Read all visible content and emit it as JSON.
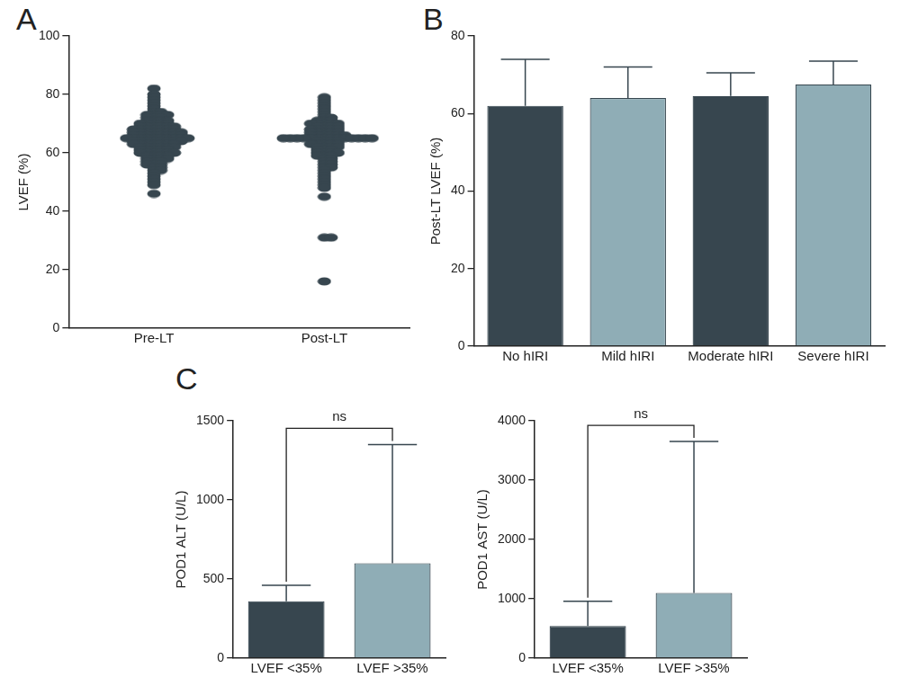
{
  "chart_data": [
    {
      "type": "scatter",
      "title": "A",
      "ylabel": "LVEF (%)",
      "categories": [
        "Pre-LT",
        "Post-LT"
      ],
      "values": [
        [
          82,
          80,
          79,
          78,
          77,
          76,
          75,
          74,
          74,
          73,
          73,
          73,
          73,
          72,
          72,
          72,
          71,
          71,
          71,
          71,
          70,
          70,
          70,
          70,
          70,
          69,
          69,
          69,
          69,
          69,
          69,
          68,
          68,
          68,
          68,
          68,
          68,
          68,
          67,
          67,
          67,
          67,
          67,
          67,
          67,
          67,
          66,
          66,
          66,
          66,
          66,
          66,
          66,
          66,
          65,
          65,
          65,
          65,
          65,
          65,
          65,
          65,
          65,
          65,
          64,
          64,
          64,
          64,
          64,
          64,
          64,
          64,
          63,
          63,
          63,
          63,
          63,
          63,
          63,
          62,
          62,
          62,
          62,
          62,
          62,
          61,
          61,
          61,
          61,
          61,
          60,
          60,
          60,
          60,
          60,
          60,
          59,
          59,
          59,
          59,
          58,
          58,
          58,
          58,
          57,
          57,
          57,
          56,
          56,
          56,
          55,
          55,
          54,
          54,
          53,
          52,
          51,
          50,
          49,
          46
        ],
        [
          79,
          78,
          77,
          76,
          75,
          74,
          73,
          72,
          72,
          71,
          71,
          71,
          70,
          70,
          70,
          70,
          70,
          69,
          69,
          69,
          69,
          68,
          68,
          68,
          68,
          68,
          67,
          67,
          67,
          67,
          67,
          66,
          66,
          66,
          66,
          66,
          66,
          65,
          65,
          65,
          65,
          65,
          65,
          65,
          65,
          65,
          65,
          65,
          65,
          65,
          65,
          64,
          64,
          64,
          64,
          63,
          63,
          63,
          63,
          63,
          62,
          62,
          62,
          62,
          61,
          61,
          61,
          60,
          60,
          60,
          60,
          59,
          59,
          59,
          58,
          58,
          57,
          57,
          56,
          56,
          55,
          55,
          54,
          53,
          52,
          51,
          50,
          49,
          48,
          45,
          31,
          31,
          16
        ]
      ],
      "color": "#37464f",
      "marker": "ellipse",
      "ylim": [
        0,
        100
      ],
      "yticks": [
        0,
        20,
        40,
        60,
        80,
        100
      ],
      "grid": false
    },
    {
      "type": "bar",
      "title": "B",
      "ylabel": "Post-LT LVEF (%)",
      "categories": [
        "No hIRI",
        "Mild hIRI",
        "Moderate hIRI",
        "Severe hIRI"
      ],
      "values": [
        62,
        64,
        64.5,
        67.5
      ],
      "errors": [
        12,
        8,
        6,
        6
      ],
      "colors": [
        "#37464f",
        "#8fadb6",
        "#37464f",
        "#8fadb6"
      ],
      "ylim": [
        0,
        80
      ],
      "yticks": [
        0,
        20,
        40,
        60,
        80
      ],
      "grid": false
    },
    {
      "type": "bar",
      "title": "C",
      "ylabel": "POD1 ALT (U/L)",
      "categories": [
        "LVEF <35%",
        "LVEF >35%"
      ],
      "values": [
        360,
        600
      ],
      "errors": [
        100,
        750
      ],
      "colors": [
        "#37464f",
        "#8fadb6"
      ],
      "annotations": [
        {
          "text": "ns",
          "between": [
            "LVEF <35%",
            "LVEF >35%"
          ]
        }
      ],
      "ylim": [
        0,
        1500
      ],
      "yticks": [
        0,
        500,
        1000,
        1500
      ],
      "grid": false
    },
    {
      "type": "bar",
      "ylabel": "POD1 AST (U/L)",
      "categories": [
        "LVEF <35%",
        "LVEF >35%"
      ],
      "values": [
        540,
        1100
      ],
      "errors": [
        420,
        2550
      ],
      "colors": [
        "#37464f",
        "#8fadb6"
      ],
      "annotations": [
        {
          "text": "ns",
          "between": [
            "LVEF <35%",
            "LVEF >35%"
          ]
        }
      ],
      "ylim": [
        0,
        4000
      ],
      "yticks": [
        0,
        1000,
        2000,
        3000,
        4000
      ],
      "grid": false
    }
  ]
}
